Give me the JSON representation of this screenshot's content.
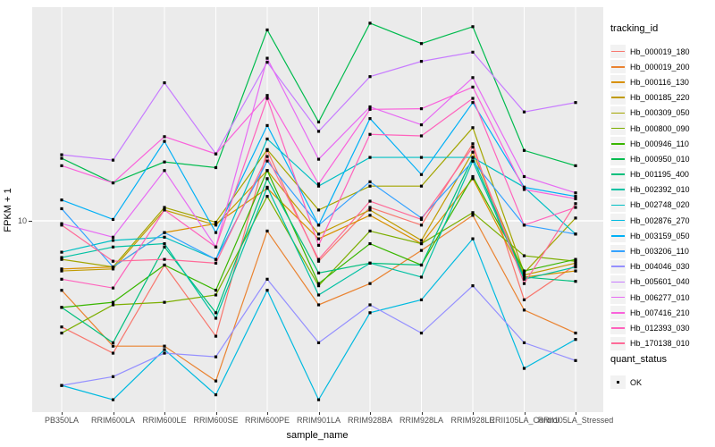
{
  "figure": {
    "panel_background": "#EBEBEB",
    "gridline_color": "#FFFFFF",
    "axis_text_color": "#4D4D4D",
    "point_color": "#000000"
  },
  "legend": {
    "tracking_title": "tracking_id",
    "quant_title": "quant_status",
    "quant_items": [
      {
        "label": "OK",
        "marker": "black-square"
      }
    ]
  },
  "chart_data": {
    "type": "line",
    "title": "",
    "xlabel": "sample_name",
    "ylabel": "FPKM + 1",
    "y_scale": "log10",
    "y_ticks": [
      "10"
    ],
    "ylim": [
      2.5,
      45
    ],
    "grid": "major-on-white",
    "legend_position": "right",
    "point_marker": "small black square (quant_status OK)",
    "x_categories": [
      "PB350LA",
      "RRIM600LA",
      "RRIM600LE",
      "RRIM600SE",
      "RRIM600PE",
      "RRIM901LA",
      "RRIM928BA",
      "RRIM928LA",
      "RRIM928LE",
      "RRII105LA_Control",
      "RRII105LA_Stressed"
    ],
    "series": [
      {
        "name": "Hb_000019_180",
        "color": "#F8766D",
        "values": [
          4.7,
          3.9,
          7.3,
          4.4,
          16.5,
          7.5,
          11.0,
          9.7,
          17.3,
          5.7,
          7.3
        ]
      },
      {
        "name": "Hb_000019_200",
        "color": "#EA8331",
        "values": [
          6.1,
          4.1,
          4.1,
          3.2,
          9.3,
          5.5,
          6.4,
          8.1,
          10.4,
          5.3,
          4.5
        ]
      },
      {
        "name": "Hb_000116_130",
        "color": "#D89000",
        "values": [
          7.1,
          7.2,
          9.2,
          9.8,
          12.6,
          8.8,
          10.4,
          8.5,
          13.5,
          6.7,
          7.0
        ]
      },
      {
        "name": "Hb_000185_220",
        "color": "#C09B00",
        "values": [
          7.0,
          7.1,
          10.8,
          9.7,
          14.3,
          9.1,
          10.8,
          8.7,
          16.3,
          6.8,
          7.4
        ]
      },
      {
        "name": "Hb_000309_050",
        "color": "#A3A500",
        "values": [
          7.6,
          7.2,
          11.0,
          9.9,
          16.6,
          10.8,
          12.8,
          12.8,
          19.4,
          6.9,
          10.2
        ]
      },
      {
        "name": "Hb_000800_090",
        "color": "#7CAE00",
        "values": [
          4.5,
          5.5,
          5.6,
          5.9,
          11.9,
          6.3,
          9.3,
          8.5,
          10.6,
          7.8,
          7.5
        ]
      },
      {
        "name": "Hb_000946_110",
        "color": "#39B600",
        "values": [
          5.4,
          5.6,
          7.3,
          6.1,
          14.3,
          6.4,
          8.5,
          7.3,
          13.7,
          7.0,
          7.6
        ]
      },
      {
        "name": "Hb_000950_010",
        "color": "#00BB4E",
        "values": [
          15.6,
          13.1,
          15.2,
          14.6,
          38.9,
          20.2,
          40.8,
          35.3,
          39.8,
          16.5,
          14.8
        ]
      },
      {
        "name": "Hb_001195_400",
        "color": "#00BF7D",
        "values": [
          5.4,
          4.2,
          8.3,
          5.2,
          13.5,
          6.9,
          7.4,
          7.3,
          15.7,
          6.7,
          6.5
        ]
      },
      {
        "name": "Hb_002392_010",
        "color": "#00C1A3",
        "values": [
          7.7,
          8.3,
          8.5,
          5.0,
          12.7,
          5.9,
          7.4,
          6.7,
          15.3,
          6.6,
          7.2
        ]
      },
      {
        "name": "Hb_002748_020",
        "color": "#00BFC4",
        "values": [
          8.0,
          8.7,
          8.9,
          7.6,
          17.9,
          12.8,
          15.7,
          15.7,
          15.7,
          12.7,
          9.1
        ]
      },
      {
        "name": "Hb_002876_270",
        "color": "#00BAE0",
        "values": [
          3.1,
          2.8,
          4.0,
          2.9,
          6.1,
          2.8,
          5.2,
          5.7,
          8.8,
          3.5,
          4.3
        ]
      },
      {
        "name": "Hb_003159_050",
        "color": "#00B0F6",
        "values": [
          11.6,
          10.1,
          17.6,
          9.2,
          19.7,
          9.7,
          20.7,
          13.9,
          23.2,
          12.7,
          11.9
        ]
      },
      {
        "name": "Hb_003206_110",
        "color": "#35A2FF",
        "values": [
          10.9,
          7.2,
          9.2,
          7.6,
          15.3,
          9.7,
          13.2,
          10.2,
          15.3,
          9.7,
          9.1
        ]
      },
      {
        "name": "Hb_004046_030",
        "color": "#9590FF",
        "values": [
          3.1,
          3.3,
          3.9,
          3.8,
          6.6,
          4.2,
          5.5,
          4.5,
          6.3,
          4.2,
          3.7
        ]
      },
      {
        "name": "Hb_005601_040",
        "color": "#C77CFF",
        "values": [
          16.0,
          15.4,
          26.7,
          16.1,
          30.9,
          18.9,
          27.9,
          31.1,
          33.2,
          21.7,
          23.2
        ]
      },
      {
        "name": "Hb_006277_010",
        "color": "#E76BF3",
        "values": [
          9.8,
          8.9,
          14.3,
          8.3,
          31.8,
          15.5,
          22.5,
          19.8,
          27.7,
          13.7,
          12.2
        ]
      },
      {
        "name": "Hb_007416_210",
        "color": "#FA62DB",
        "values": [
          14.8,
          13.1,
          18.2,
          16.1,
          24.4,
          13.0,
          22.1,
          22.2,
          25.9,
          12.5,
          11.7
        ]
      },
      {
        "name": "Hb_012393_030",
        "color": "#FF62BC",
        "values": [
          6.6,
          6.2,
          10.8,
          8.3,
          23.9,
          8.4,
          18.5,
          18.3,
          23.9,
          9.7,
          11.0
        ]
      },
      {
        "name": "Hb_170138_010",
        "color": "#FF6A98",
        "values": [
          9.7,
          7.5,
          7.6,
          7.4,
          15.8,
          7.6,
          11.5,
          10.1,
          16.9,
          6.4,
          11.3
        ]
      }
    ]
  }
}
